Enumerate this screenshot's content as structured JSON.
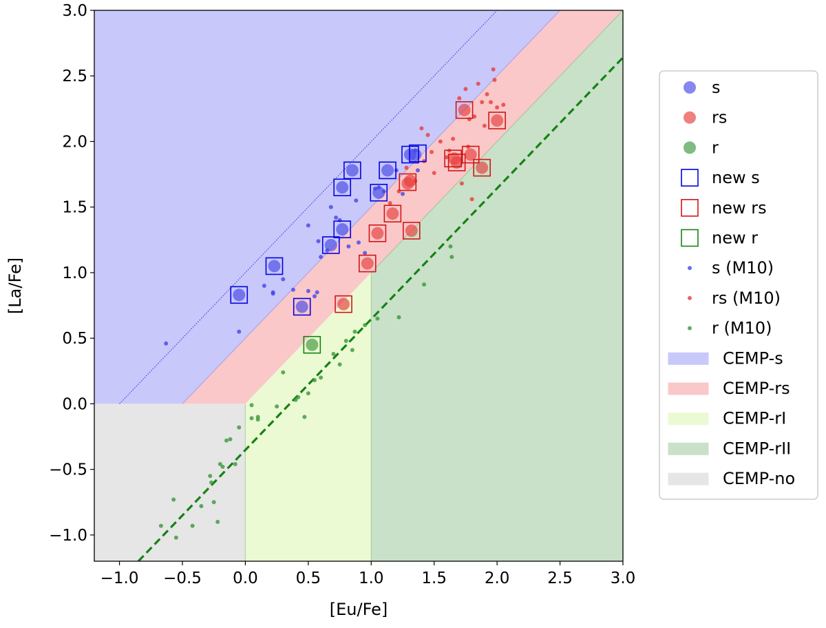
{
  "chart_data": {
    "type": "scatter",
    "xlabel": "[Eu/Fe]",
    "ylabel": "[La/Fe]",
    "xlim": [
      -1.2,
      3.0
    ],
    "ylim": [
      -1.2,
      3.0
    ],
    "xticks": [
      -1.0,
      -0.5,
      0.0,
      0.5,
      1.0,
      1.5,
      2.0,
      2.5,
      3.0
    ],
    "yticks": [
      -1.0,
      -0.5,
      0.0,
      0.5,
      1.0,
      1.5,
      2.0,
      2.5,
      3.0
    ],
    "xtick_labels": [
      "−1.0",
      "−0.5",
      "0.0",
      "0.5",
      "1.0",
      "1.5",
      "2.0",
      "2.5",
      "3.0"
    ],
    "ytick_labels": [
      "−1.0",
      "−0.5",
      "0.0",
      "0.5",
      "1.0",
      "1.5",
      "2.0",
      "2.5",
      "3.0"
    ],
    "grid": false,
    "legend_position": "outside-right",
    "colors": {
      "s": "#4646e6",
      "rs": "#e63c3c",
      "r": "#3c963c",
      "new_s": "#0000e6",
      "new_rs": "#d21414",
      "new_r": "#148214",
      "region_s": "#c8c8fa",
      "region_rs": "#fac8c8",
      "region_rI": "#ebfad2",
      "region_rII": "#c8e1c8",
      "region_no": "#e6e6e6",
      "fit_line": "#148214"
    },
    "regions": [
      {
        "name": "CEMP-s",
        "key": "region_s",
        "polygon": [
          [
            -1.2,
            0.0
          ],
          [
            -0.5,
            0.0
          ],
          [
            2.5,
            3.0
          ],
          [
            -1.2,
            3.0
          ]
        ]
      },
      {
        "name": "CEMP-rs",
        "key": "region_rs",
        "polygon": [
          [
            -0.5,
            0.0
          ],
          [
            0.0,
            0.0
          ],
          [
            1.0,
            1.0
          ],
          [
            3.0,
            3.0
          ],
          [
            2.5,
            3.0
          ]
        ]
      },
      {
        "name": "CEMP-rI",
        "key": "region_rI",
        "polygon": [
          [
            0.0,
            -1.2
          ],
          [
            1.0,
            -1.2
          ],
          [
            1.0,
            1.0
          ],
          [
            0.0,
            0.0
          ]
        ]
      },
      {
        "name": "CEMP-rII",
        "key": "region_rII",
        "polygon": [
          [
            1.0,
            -1.2
          ],
          [
            3.0,
            -1.2
          ],
          [
            3.0,
            3.0
          ],
          [
            1.0,
            1.0
          ]
        ]
      },
      {
        "name": "CEMP-no",
        "key": "region_no",
        "polygon": [
          [
            -1.2,
            -1.2
          ],
          [
            0.0,
            -1.2
          ],
          [
            0.0,
            0.0
          ],
          [
            -1.2,
            0.0
          ]
        ]
      }
    ],
    "boundary_lines": [
      {
        "name": "s-rs boundary",
        "from": [
          -0.5,
          0.0
        ],
        "to": [
          2.5,
          3.0
        ],
        "key": "s"
      },
      {
        "name": "rs-r boundary",
        "from": [
          1.0,
          1.0
        ],
        "to": [
          3.0,
          3.0
        ],
        "key": "r"
      },
      {
        "name": "rI-rII boundary",
        "from": [
          1.0,
          -1.2
        ],
        "to": [
          1.0,
          1.0
        ],
        "key": "r"
      },
      {
        "name": "rI-no boundary",
        "from": [
          0.0,
          -1.2
        ],
        "to": [
          0.0,
          0.0
        ],
        "key": "r"
      }
    ],
    "dotted_line": {
      "from": [
        -1.0,
        0.0
      ],
      "to": [
        2.0,
        3.0
      ],
      "key": "new_s"
    },
    "fit_line": {
      "from": [
        -0.85,
        -1.2
      ],
      "to": [
        3.0,
        2.64
      ],
      "key": "fit_line"
    },
    "series": [
      {
        "name": "s",
        "marker": "large-circle",
        "key": "s",
        "x": [
          -0.05,
          0.23,
          0.45,
          0.68,
          0.77,
          0.77,
          0.85,
          1.06,
          1.13,
          1.31,
          1.35
        ],
        "y": [
          0.83,
          1.05,
          0.74,
          1.21,
          1.33,
          1.65,
          1.78,
          1.61,
          1.78,
          1.9,
          1.9
        ]
      },
      {
        "name": "rs",
        "marker": "large-circle",
        "key": "rs",
        "x": [
          0.78,
          0.97,
          1.05,
          1.17,
          1.29,
          1.31,
          1.32,
          1.66,
          1.68,
          1.74,
          1.79,
          1.88,
          2.0
        ],
        "y": [
          0.76,
          1.07,
          1.3,
          1.45,
          1.68,
          1.7,
          1.32,
          1.87,
          1.84,
          2.24,
          1.9,
          1.8,
          2.16
        ]
      },
      {
        "name": "r",
        "marker": "large-circle",
        "key": "r",
        "x": [
          0.53
        ],
        "y": [
          0.45
        ]
      },
      {
        "name": "new s",
        "marker": "open-square",
        "key": "new_s",
        "x": [
          -0.05,
          0.23,
          0.45,
          0.68,
          0.77,
          0.77,
          0.85,
          1.06,
          1.13,
          1.31,
          1.37
        ],
        "y": [
          0.83,
          1.05,
          0.74,
          1.21,
          1.33,
          1.65,
          1.78,
          1.61,
          1.78,
          1.9,
          1.91
        ]
      },
      {
        "name": "new rs",
        "marker": "open-square",
        "key": "new_rs",
        "x": [
          0.78,
          0.97,
          1.05,
          1.17,
          1.29,
          1.32,
          1.65,
          1.68,
          1.74,
          1.79,
          1.88,
          2.0
        ],
        "y": [
          0.76,
          1.07,
          1.3,
          1.45,
          1.69,
          1.32,
          1.87,
          1.84,
          2.24,
          1.9,
          1.8,
          2.16
        ]
      },
      {
        "name": "new r",
        "marker": "open-square",
        "key": "new_r",
        "x": [
          0.53
        ],
        "y": [
          0.45
        ]
      },
      {
        "name": "s (M10)",
        "marker": "small-dot",
        "key": "s",
        "x": [
          -0.63,
          -0.05,
          0.15,
          0.22,
          0.22,
          0.3,
          0.38,
          0.5,
          0.5,
          0.55,
          0.57,
          0.58,
          0.6,
          0.65,
          0.68,
          0.72,
          0.75,
          0.82,
          0.88,
          0.9,
          0.95,
          1.03,
          1.06,
          1.1,
          1.2,
          1.25,
          1.35,
          1.37
        ],
        "y": [
          0.46,
          0.55,
          0.9,
          0.84,
          0.85,
          0.95,
          0.87,
          1.36,
          0.86,
          0.82,
          0.85,
          1.24,
          1.12,
          1.17,
          1.5,
          1.42,
          1.4,
          1.2,
          1.55,
          1.23,
          1.15,
          1.64,
          1.65,
          1.62,
          1.78,
          1.6,
          1.93,
          1.78
        ]
      },
      {
        "name": "rs (M10)",
        "marker": "small-dot",
        "key": "rs",
        "x": [
          1.15,
          1.22,
          1.28,
          1.35,
          1.4,
          1.42,
          1.45,
          1.48,
          1.5,
          1.55,
          1.6,
          1.62,
          1.65,
          1.7,
          1.72,
          1.75,
          1.77,
          1.78,
          1.8,
          1.82,
          1.85,
          1.88,
          1.9,
          1.92,
          1.95,
          1.97,
          1.98,
          2.0,
          2.05
        ],
        "y": [
          1.53,
          1.62,
          1.8,
          1.7,
          2.1,
          1.85,
          2.05,
          1.92,
          1.76,
          2.0,
          1.88,
          1.93,
          2.02,
          2.33,
          1.68,
          2.4,
          1.96,
          2.17,
          1.56,
          2.19,
          2.44,
          2.3,
          2.12,
          2.36,
          2.3,
          2.55,
          2.47,
          2.26,
          2.28
        ]
      },
      {
        "name": "r (M10)",
        "marker": "small-dot",
        "key": "r",
        "x": [
          -0.67,
          -0.57,
          -0.55,
          -0.42,
          -0.35,
          -0.28,
          -0.27,
          -0.25,
          -0.22,
          -0.2,
          -0.18,
          -0.15,
          -0.12,
          -0.08,
          -0.05,
          0.05,
          0.05,
          0.1,
          0.1,
          0.25,
          0.3,
          0.4,
          0.42,
          0.47,
          0.5,
          0.55,
          0.6,
          0.7,
          0.75,
          0.8,
          0.85,
          0.87,
          0.95,
          1.05,
          1.22,
          1.42,
          1.63,
          1.64
        ],
        "y": [
          -0.93,
          -0.73,
          -1.02,
          -0.93,
          -0.78,
          -0.55,
          -0.6,
          -0.75,
          -0.9,
          -0.46,
          -0.48,
          -0.28,
          -0.27,
          -0.46,
          -0.18,
          -0.11,
          -0.01,
          -0.1,
          -0.12,
          -0.02,
          0.24,
          0.03,
          0.05,
          -0.1,
          0.08,
          0.18,
          0.2,
          0.38,
          0.3,
          0.48,
          0.41,
          0.55,
          0.6,
          0.65,
          0.66,
          0.91,
          1.2,
          1.12
        ]
      }
    ],
    "legend": [
      {
        "label": "s",
        "type": "large-circle",
        "key": "s"
      },
      {
        "label": "rs",
        "type": "large-circle",
        "key": "rs"
      },
      {
        "label": "r",
        "type": "large-circle",
        "key": "r"
      },
      {
        "label": "new s",
        "type": "open-square",
        "key": "new_s"
      },
      {
        "label": "new rs",
        "type": "open-square",
        "key": "new_rs"
      },
      {
        "label": "new r",
        "type": "open-square",
        "key": "new_r"
      },
      {
        "label": "s (M10)",
        "type": "small-dot",
        "key": "s"
      },
      {
        "label": "rs (M10)",
        "type": "small-dot",
        "key": "rs"
      },
      {
        "label": "r (M10)",
        "type": "small-dot",
        "key": "r"
      },
      {
        "label": "CEMP-s",
        "type": "patch",
        "key": "region_s"
      },
      {
        "label": "CEMP-rs",
        "type": "patch",
        "key": "region_rs"
      },
      {
        "label": "CEMP-rI",
        "type": "patch",
        "key": "region_rI"
      },
      {
        "label": "CEMP-rII",
        "type": "patch",
        "key": "region_rII"
      },
      {
        "label": "CEMP-no",
        "type": "patch",
        "key": "region_no"
      }
    ]
  }
}
